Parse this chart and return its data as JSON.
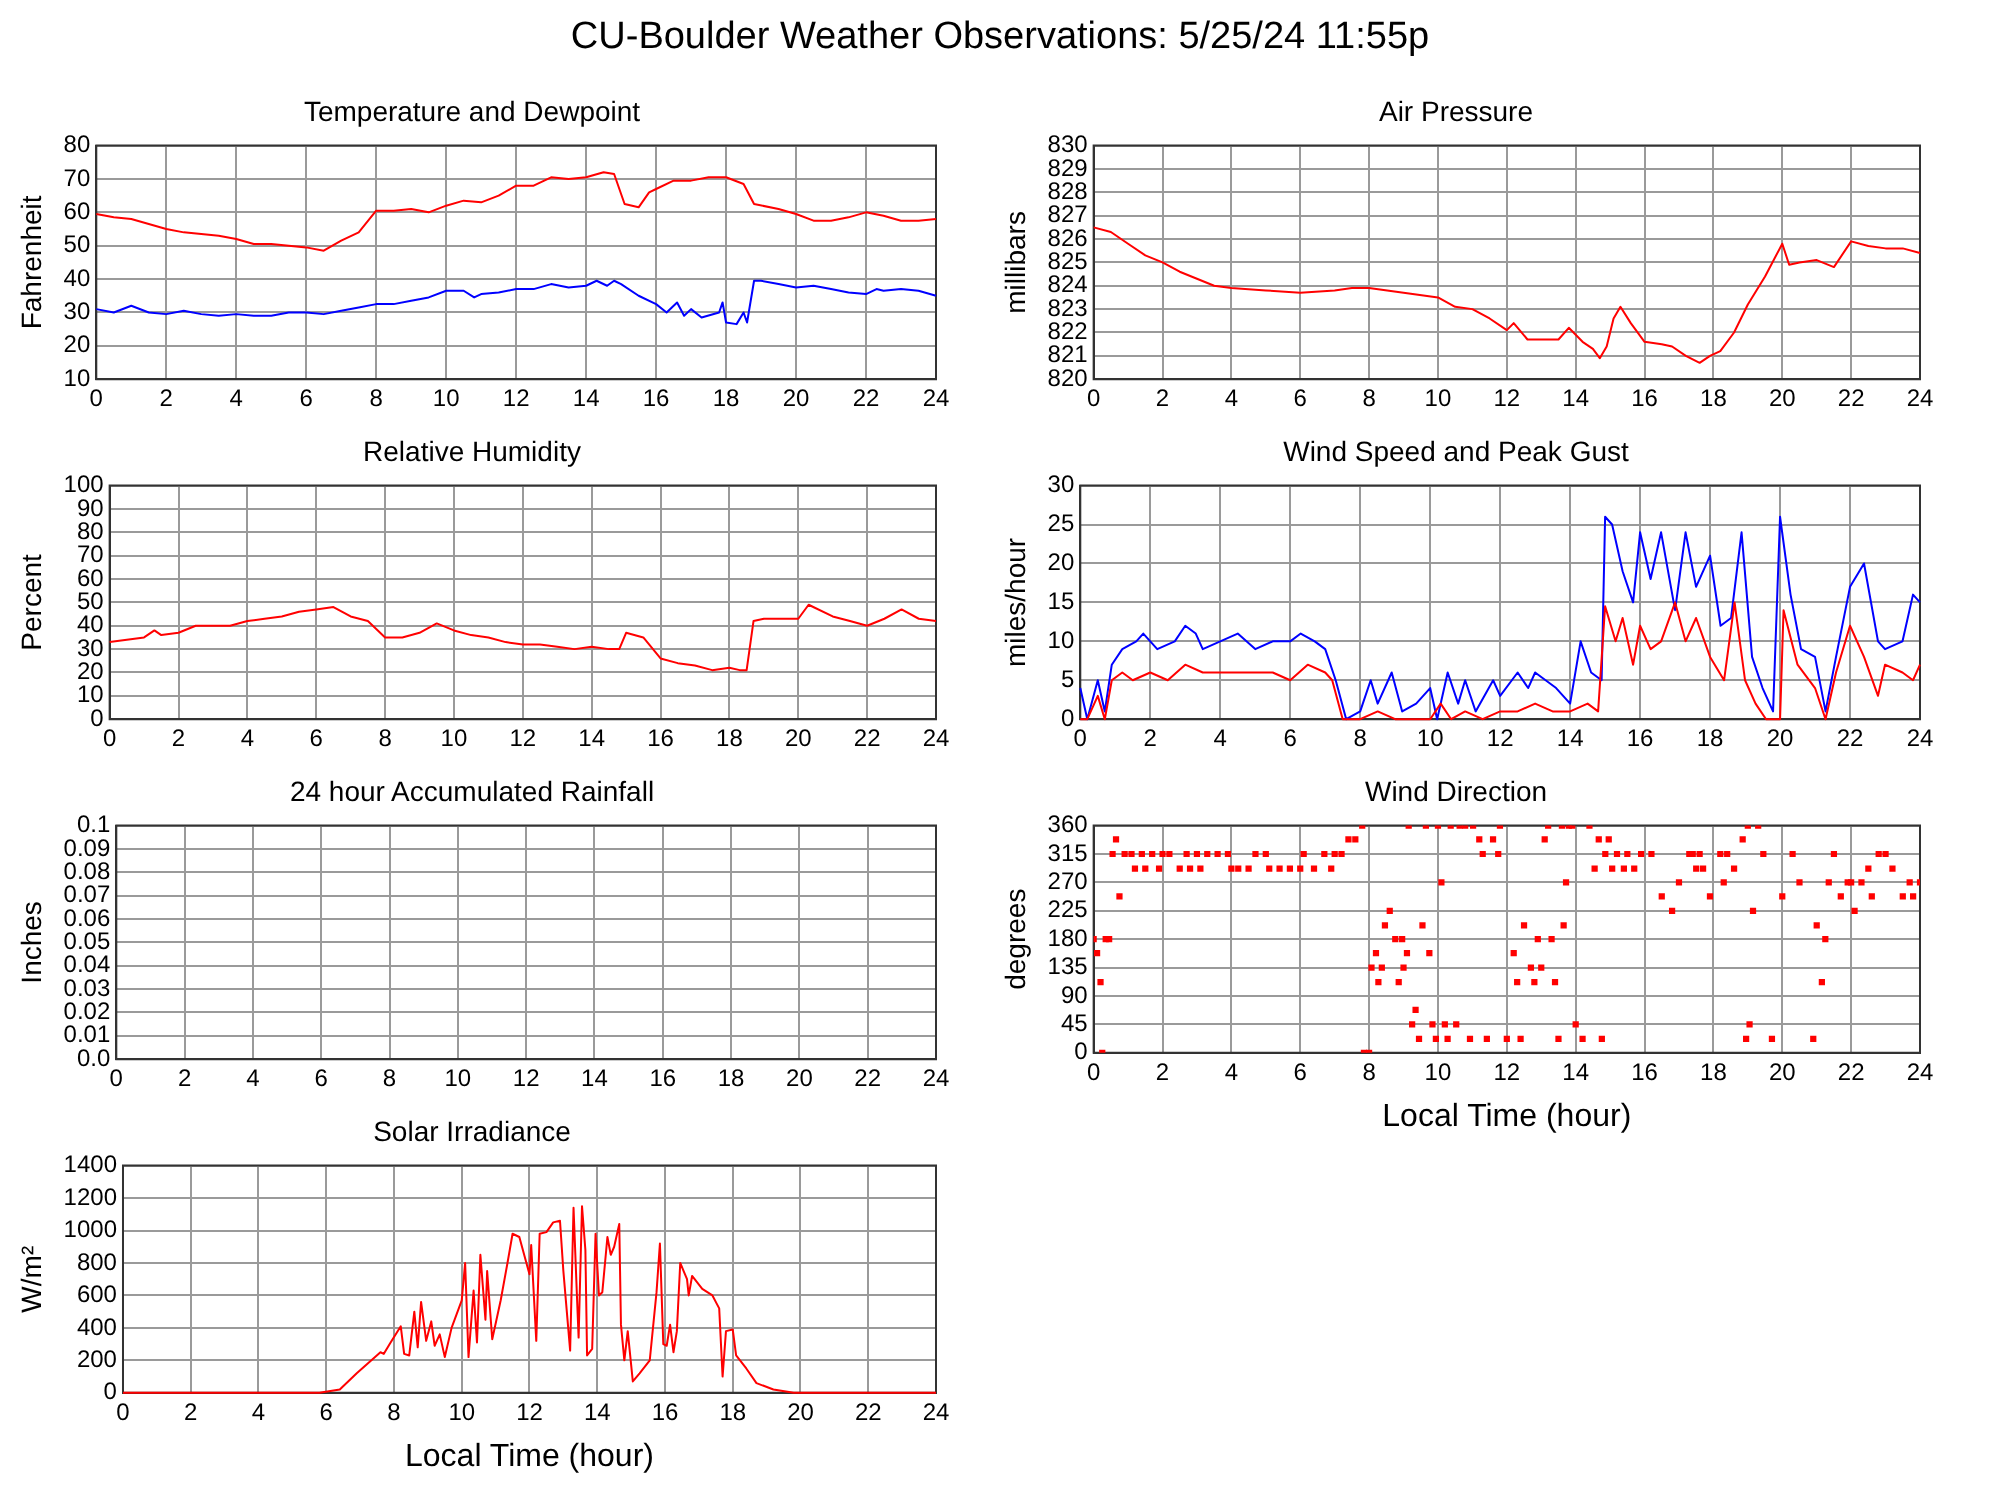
{
  "chart_data": [
    {
      "type": "other",
      "title": "CU-Boulder Weather Observations: 5/25/24 11:55p"
    },
    {
      "type": "line",
      "title": "Temperature and Dewpoint",
      "ylabel": "Fahrenheit",
      "xlim": [
        0,
        24
      ],
      "xticks": [
        0,
        2,
        4,
        6,
        8,
        10,
        12,
        14,
        16,
        18,
        20,
        22,
        24
      ],
      "ylim": [
        10,
        80
      ],
      "yticks": [
        10,
        20,
        30,
        40,
        50,
        60,
        70,
        80
      ],
      "grid": true,
      "series": [
        {
          "color": "#ff0000",
          "x": [
            0,
            0.5,
            1,
            1.5,
            2,
            2.5,
            3,
            3.5,
            4,
            4.5,
            5,
            5.5,
            6,
            6.5,
            7,
            7.5,
            8,
            8.5,
            9,
            9.5,
            10,
            10.5,
            11,
            11.5,
            12,
            12.5,
            13,
            13.5,
            14,
            14.5,
            14.8,
            15.1,
            15.5,
            15.8,
            16,
            16.5,
            17,
            17.5,
            18,
            18.5,
            18.8,
            19.5,
            20,
            20.5,
            21,
            21.5,
            22,
            22.5,
            23,
            23.5,
            24
          ],
          "values": [
            59.5,
            58.5,
            58,
            56.5,
            55,
            54,
            53.5,
            53,
            52,
            50.5,
            50.5,
            50,
            49.5,
            48.5,
            51.5,
            54,
            60.5,
            60.5,
            61,
            60,
            62,
            63.5,
            63,
            65,
            68,
            68,
            70.5,
            70,
            70.5,
            72,
            71.5,
            62.5,
            61.5,
            66,
            67,
            69.5,
            69.5,
            70.5,
            70.5,
            68.5,
            62.5,
            61,
            59.5,
            57.5,
            57.5,
            58.5,
            60,
            59,
            57.5,
            57.5,
            58
          ]
        },
        {
          "color": "#0000ff",
          "x": [
            0,
            0.5,
            1,
            1.5,
            2,
            2.5,
            3,
            3.5,
            4,
            4.5,
            5,
            5.5,
            6,
            6.5,
            7,
            7.5,
            8,
            8.5,
            9,
            9.5,
            10,
            10.5,
            10.8,
            11,
            11.5,
            12,
            12.5,
            13,
            13.5,
            14,
            14.3,
            14.6,
            14.8,
            15,
            15.5,
            16,
            16.3,
            16.6,
            16.8,
            17,
            17.3,
            17.8,
            17.9,
            18,
            18.3,
            18.5,
            18.6,
            18.8,
            19,
            19.5,
            20,
            20.5,
            21,
            21.5,
            22,
            22.3,
            22.5,
            23,
            23.5,
            24
          ],
          "values": [
            31,
            30,
            32,
            30,
            29.5,
            30.5,
            29.5,
            29,
            29.5,
            29,
            29,
            30,
            30,
            29.5,
            30.5,
            31.5,
            32.5,
            32.5,
            33.5,
            34.5,
            36.5,
            36.5,
            34.5,
            35.5,
            36,
            37,
            37,
            38.5,
            37.5,
            38,
            39.5,
            38,
            39.5,
            38.5,
            35,
            32.5,
            30,
            33,
            29,
            31,
            28.5,
            30,
            33,
            27,
            26.5,
            30,
            27,
            39.5,
            39.5,
            38.5,
            37.5,
            38,
            37,
            36,
            35.5,
            37,
            36.5,
            37,
            36.5,
            35
          ]
        }
      ]
    },
    {
      "type": "line",
      "title": "Air Pressure",
      "ylabel": "millibars",
      "xlim": [
        0,
        24
      ],
      "xticks": [
        0,
        2,
        4,
        6,
        8,
        10,
        12,
        14,
        16,
        18,
        20,
        22,
        24
      ],
      "ylim": [
        820,
        830
      ],
      "yticks": [
        820,
        821,
        822,
        823,
        824,
        825,
        826,
        827,
        828,
        829,
        830
      ],
      "grid": true,
      "series": [
        {
          "color": "#ff0000",
          "x": [
            0,
            0.5,
            1,
            1.5,
            2,
            2.5,
            3,
            3.5,
            4,
            5,
            6,
            7,
            7.5,
            8,
            9,
            10,
            10.5,
            11,
            11.5,
            12,
            12.2,
            12.6,
            13,
            13.5,
            13.8,
            14.2,
            14.5,
            14.7,
            14.9,
            15.1,
            15.3,
            15.6,
            16,
            16.5,
            16.8,
            17.2,
            17.6,
            17.9,
            18.2,
            18.6,
            19,
            19.5,
            20,
            20.2,
            20.5,
            21,
            21.5,
            22,
            22.5,
            23,
            23.5,
            24
          ],
          "values": [
            826.5,
            826.3,
            825.8,
            825.3,
            825,
            824.6,
            824.3,
            824,
            823.9,
            823.8,
            823.7,
            823.8,
            823.9,
            823.9,
            823.7,
            823.5,
            823.1,
            823,
            822.6,
            822.1,
            822.4,
            821.7,
            821.7,
            821.7,
            822.2,
            821.6,
            821.3,
            820.9,
            821.4,
            822.6,
            823.1,
            822.4,
            821.6,
            821.5,
            821.4,
            821,
            820.7,
            821,
            821.2,
            822,
            823.2,
            824.4,
            825.8,
            824.9,
            825,
            825.1,
            824.8,
            825.9,
            825.7,
            825.6,
            825.6,
            825.4
          ]
        }
      ]
    },
    {
      "type": "line",
      "title": "Relative Humidity",
      "ylabel": "Percent",
      "xlim": [
        0,
        24
      ],
      "xticks": [
        0,
        2,
        4,
        6,
        8,
        10,
        12,
        14,
        16,
        18,
        20,
        22,
        24
      ],
      "ylim": [
        0,
        100
      ],
      "yticks": [
        0,
        10,
        20,
        30,
        40,
        50,
        60,
        70,
        80,
        90,
        100
      ],
      "grid": true,
      "series": [
        {
          "color": "#ff0000",
          "x": [
            0,
            0.5,
            1,
            1.3,
            1.5,
            2,
            2.5,
            3,
            3.5,
            4,
            4.5,
            5,
            5.5,
            6,
            6.5,
            7,
            7.5,
            8,
            8.5,
            9,
            9.5,
            10,
            10.5,
            11,
            11.5,
            12,
            12.5,
            13,
            13.5,
            14,
            14.5,
            14.8,
            15,
            15.5,
            16,
            16.5,
            17,
            17.5,
            18,
            18.3,
            18.5,
            18.7,
            19,
            19.5,
            20,
            20.3,
            21,
            21.5,
            22,
            22.5,
            23,
            23.5,
            24
          ],
          "values": [
            33,
            34,
            35,
            38,
            36,
            37,
            40,
            40,
            40,
            42,
            43,
            44,
            46,
            47,
            48,
            44,
            42,
            35,
            35,
            37,
            41,
            38,
            36,
            35,
            33,
            32,
            32,
            31,
            30,
            31,
            30,
            30,
            37,
            35,
            26,
            24,
            23,
            21,
            22,
            21,
            21,
            42,
            43,
            43,
            43,
            49,
            44,
            42,
            40,
            43,
            47,
            43,
            42
          ]
        }
      ]
    },
    {
      "type": "line",
      "title": "Wind Speed and Peak Gust",
      "ylabel": "miles/hour",
      "xlim": [
        0,
        24
      ],
      "xticks": [
        0,
        2,
        4,
        6,
        8,
        10,
        12,
        14,
        16,
        18,
        20,
        22,
        24
      ],
      "ylim": [
        0,
        30
      ],
      "yticks": [
        0,
        5,
        10,
        15,
        20,
        25,
        30
      ],
      "grid": true,
      "series": [
        {
          "color": "#ff0000",
          "x": [
            0,
            0.2,
            0.5,
            0.7,
            0.9,
            1.2,
            1.5,
            2,
            2.5,
            3,
            3.5,
            4,
            4.5,
            5,
            5.5,
            6,
            6.5,
            7,
            7.2,
            7.5,
            8,
            8.5,
            9,
            10,
            10.3,
            10.6,
            11,
            11.5,
            12,
            12.5,
            13,
            13.5,
            14,
            14.5,
            14.8,
            15,
            15.3,
            15.5,
            15.8,
            16,
            16.3,
            16.6,
            17,
            17.3,
            17.6,
            18,
            18.4,
            18.7,
            19,
            19.3,
            19.6,
            20,
            20.1,
            20.5,
            21,
            21.3,
            21.6,
            22,
            22.4,
            22.8,
            23,
            23.5,
            23.8,
            24
          ],
          "values": [
            0,
            0,
            3,
            0,
            5,
            6,
            5,
            6,
            5,
            7,
            6,
            6,
            6,
            6,
            6,
            5,
            7,
            6,
            5,
            0,
            0,
            1,
            0,
            0,
            2,
            0,
            1,
            0,
            1,
            1,
            2,
            1,
            1,
            2,
            1,
            14.5,
            10,
            13,
            7,
            12,
            9,
            10,
            15,
            10,
            13,
            8,
            5,
            15,
            5,
            2,
            0,
            0,
            14,
            7,
            4,
            0,
            6,
            12,
            8,
            3,
            7,
            6,
            5,
            7
          ]
        },
        {
          "color": "#0000ff",
          "x": [
            0,
            0.2,
            0.5,
            0.7,
            0.9,
            1.2,
            1.6,
            1.8,
            2.2,
            2.7,
            3,
            3.3,
            3.5,
            4,
            4.5,
            5,
            5.5,
            6,
            6.3,
            6.7,
            7,
            7.3,
            7.6,
            8,
            8.3,
            8.5,
            8.9,
            9.2,
            9.6,
            10,
            10.2,
            10.5,
            10.8,
            11,
            11.3,
            11.8,
            12,
            12.5,
            12.8,
            13,
            13.3,
            13.6,
            14,
            14.3,
            14.6,
            14.9,
            15,
            15.2,
            15.5,
            15.8,
            16,
            16.3,
            16.6,
            17,
            17.3,
            17.6,
            18,
            18.3,
            18.6,
            18.9,
            19.2,
            19.5,
            19.8,
            20,
            20.3,
            20.6,
            21,
            21.3,
            21.6,
            22,
            22.4,
            22.8,
            23,
            23.5,
            23.8,
            24
          ],
          "values": [
            4,
            0,
            5,
            1,
            7,
            9,
            10,
            11,
            9,
            10,
            12,
            11,
            9,
            10,
            11,
            9,
            10,
            10,
            11,
            10,
            9,
            5,
            0,
            1,
            5,
            2,
            6,
            1,
            2,
            4,
            0,
            6,
            2,
            5,
            1,
            5,
            3,
            6,
            4,
            6,
            5,
            4,
            2,
            10,
            6,
            5,
            26,
            25,
            19,
            15,
            24,
            18,
            24,
            14,
            24,
            17,
            21,
            12,
            13,
            24,
            8,
            4,
            1,
            26,
            16,
            9,
            8,
            1,
            8,
            17,
            20,
            10,
            9,
            10,
            16,
            15
          ]
        }
      ]
    },
    {
      "type": "line",
      "title": "24 hour Accumulated Rainfall",
      "ylabel": "Inches",
      "xlim": [
        0,
        24
      ],
      "xticks": [
        0,
        2,
        4,
        6,
        8,
        10,
        12,
        14,
        16,
        18,
        20,
        22,
        24
      ],
      "ylim": [
        0,
        0.1
      ],
      "yticks": [
        {
          "value": 0,
          "label": "0.0"
        },
        0.01,
        0.02,
        0.03,
        0.04,
        0.05,
        0.06,
        0.07,
        0.08,
        0.09,
        0.1
      ],
      "grid": true
    },
    {
      "type": "scatter",
      "title": "Wind Direction",
      "ylabel": "degrees",
      "xlabel": "Local Time (hour)",
      "xlim": [
        0,
        24
      ],
      "xticks": [
        0,
        2,
        4,
        6,
        8,
        10,
        12,
        14,
        16,
        18,
        20,
        22,
        24
      ],
      "ylim": [
        0,
        360
      ],
      "yticks": [
        0,
        45,
        90,
        135,
        180,
        225,
        270,
        315,
        360
      ],
      "grid": true,
      "marker": "square",
      "series": [
        {
          "color": "#ff0000",
          "x": [
            0,
            0.1,
            0.2,
            0.25,
            0.35,
            0.45,
            0.55,
            0.65,
            0.75,
            0.9,
            1.1,
            1.2,
            1.4,
            1.5,
            1.7,
            1.9,
            2.0,
            2.2,
            2.5,
            2.7,
            2.8,
            3.0,
            3.1,
            3.3,
            3.6,
            3.9,
            4.0,
            4.2,
            4.5,
            4.7,
            5.0,
            5.1,
            5.4,
            5.7,
            6.0,
            6.1,
            6.4,
            6.7,
            6.9,
            7.0,
            7.2,
            7.4,
            7.6,
            7.8,
            7.85,
            8.0,
            8.07,
            8.2,
            8.27,
            8.37,
            8.46,
            8.6,
            8.76,
            8.86,
            8.96,
            9.0,
            9.1,
            9.15,
            9.25,
            9.35,
            9.45,
            9.55,
            9.65,
            9.75,
            9.84,
            9.94,
            10.0,
            10.1,
            10.2,
            10.28,
            10.37,
            10.53,
            10.63,
            10.79,
            10.93,
            11.02,
            11.2,
            11.3,
            11.42,
            11.6,
            11.75,
            11.8,
            12.0,
            12.2,
            12.3,
            12.4,
            12.5,
            12.7,
            12.8,
            12.9,
            13.0,
            13.1,
            13.2,
            13.3,
            13.4,
            13.5,
            13.6,
            13.65,
            13.72,
            13.8,
            13.9,
            14.0,
            14.2,
            14.4,
            14.55,
            14.67,
            14.76,
            14.86,
            14.96,
            15.06,
            15.2,
            15.4,
            15.5,
            15.7,
            15.9,
            16.2,
            16.5,
            16.8,
            17.0,
            17.3,
            17.4,
            17.5,
            17.6,
            17.7,
            17.9,
            18.2,
            18.3,
            18.4,
            18.6,
            18.85,
            18.95,
            19.0,
            19.05,
            19.15,
            19.3,
            19.45,
            19.7,
            20.0,
            20.3,
            20.5,
            20.9,
            21.0,
            21.15,
            21.25,
            21.35,
            21.5,
            21.7,
            21.9,
            22.0,
            22.1,
            22.3,
            22.5,
            22.6,
            22.8,
            23.0,
            23.2,
            23.5,
            23.7,
            23.8,
            24.0
          ],
          "values": [
            180,
            158,
            112,
            0,
            180,
            180,
            315,
            338,
            248,
            315,
            315,
            292,
            315,
            292,
            315,
            292,
            315,
            315,
            292,
            315,
            292,
            315,
            292,
            315,
            315,
            315,
            292,
            292,
            292,
            315,
            315,
            292,
            292,
            292,
            292,
            315,
            292,
            315,
            292,
            315,
            315,
            338,
            338,
            360,
            0,
            0,
            135,
            158,
            112,
            135,
            202,
            225,
            180,
            112,
            180,
            135,
            158,
            360,
            45,
            68,
            22,
            202,
            360,
            158,
            45,
            22,
            360,
            270,
            45,
            22,
            360,
            45,
            360,
            360,
            22,
            360,
            338,
            315,
            22,
            338,
            315,
            360,
            22,
            158,
            112,
            22,
            202,
            135,
            112,
            180,
            135,
            338,
            360,
            180,
            112,
            22,
            360,
            202,
            270,
            360,
            360,
            45,
            22,
            360,
            292,
            338,
            22,
            315,
            338,
            292,
            315,
            292,
            315,
            292,
            315,
            315,
            248,
            225,
            270,
            315,
            315,
            292,
            315,
            292,
            248,
            315,
            270,
            315,
            292,
            338,
            22,
            360,
            45,
            225,
            360,
            315,
            22,
            248,
            315,
            270,
            22,
            202,
            112,
            180,
            270,
            315,
            248,
            270,
            270,
            225,
            270,
            292,
            248,
            315,
            315,
            292,
            248,
            270,
            248,
            270
          ]
        }
      ]
    },
    {
      "type": "line",
      "title": "Solar Irradiance",
      "ylabel": "W/m²",
      "xlabel": "Local Time (hour)",
      "xlim": [
        0,
        24
      ],
      "xticks": [
        0,
        2,
        4,
        6,
        8,
        10,
        12,
        14,
        16,
        18,
        20,
        22,
        24
      ],
      "ylim": [
        0,
        1400
      ],
      "yticks": [
        0,
        200,
        400,
        600,
        800,
        1000,
        1200,
        1400
      ],
      "grid": true,
      "series": [
        {
          "color": "#ff0000",
          "x": [
            0,
            5.8,
            6.4,
            6.9,
            7.6,
            7.7,
            7.9,
            8.2,
            8.3,
            8.45,
            8.6,
            8.7,
            8.8,
            8.95,
            9.1,
            9.2,
            9.35,
            9.5,
            9.7,
            10,
            10.1,
            10.2,
            10.35,
            10.45,
            10.55,
            10.7,
            10.75,
            10.9,
            11.15,
            11.35,
            11.5,
            11.7,
            12,
            12.05,
            12.2,
            12.3,
            12.5,
            12.7,
            12.9,
            13,
            13.2,
            13.3,
            13.4,
            13.45,
            13.55,
            13.65,
            13.7,
            13.85,
            13.95,
            14.05,
            14.15,
            14.3,
            14.4,
            14.5,
            14.65,
            14.7,
            14.8,
            14.9,
            15.05,
            15.25,
            15.55,
            15.75,
            15.85,
            15.95,
            16.05,
            16.15,
            16.25,
            16.35,
            16.45,
            16.65,
            16.7,
            16.8,
            17.1,
            17.4,
            17.6,
            17.7,
            17.8,
            18,
            18.1,
            18.4,
            18.7,
            19.2,
            19.8,
            24
          ],
          "values": [
            0,
            0,
            20,
            120,
            250,
            240,
            310,
            410,
            240,
            230,
            500,
            280,
            560,
            320,
            440,
            290,
            360,
            220,
            400,
            570,
            800,
            220,
            630,
            310,
            850,
            450,
            750,
            330,
            570,
            800,
            980,
            960,
            730,
            910,
            320,
            980,
            990,
            1050,
            1060,
            750,
            260,
            1140,
            600,
            340,
            1150,
            880,
            230,
            270,
            980,
            600,
            620,
            960,
            850,
            900,
            1040,
            420,
            200,
            380,
            70,
            120,
            200,
            620,
            920,
            300,
            290,
            420,
            250,
            380,
            800,
            700,
            600,
            720,
            640,
            600,
            520,
            100,
            380,
            390,
            230,
            150,
            60,
            20,
            0,
            0
          ]
        }
      ]
    }
  ]
}
